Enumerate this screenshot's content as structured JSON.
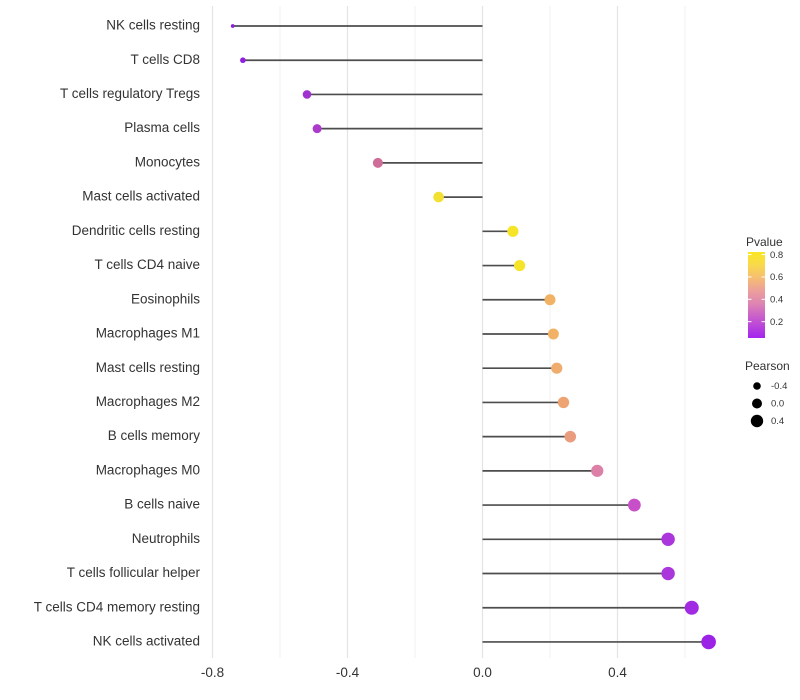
{
  "chart_data": {
    "type": "lollipop",
    "title": "",
    "xlabel": "",
    "ylabel": "",
    "x_axis": {
      "major_ticks": [
        -0.8,
        -0.4,
        0.0,
        0.4
      ],
      "major_tick_labels": [
        "-0.8",
        "-0.4",
        "0.0",
        "0.4"
      ],
      "minor_gridlines": [
        -0.6,
        -0.2,
        0.2,
        0.6
      ],
      "xlim": [
        -0.82,
        0.74
      ],
      "grid": "vertical-only"
    },
    "baseline_x": 0.0,
    "rows": [
      {
        "label": "NK cells resting",
        "pearson": -0.74,
        "dot_color": "#8A1EDC",
        "radius": 1.9
      },
      {
        "label": "T cells CD8",
        "pearson": -0.71,
        "dot_color": "#911FE0",
        "radius": 2.8
      },
      {
        "label": "T cells regulatory  Tregs",
        "pearson": -0.52,
        "dot_color": "#A231D2",
        "radius": 4.3
      },
      {
        "label": "Plasma cells",
        "pearson": -0.49,
        "dot_color": "#AC3BCC",
        "radius": 4.5
      },
      {
        "label": "Monocytes",
        "pearson": -0.31,
        "dot_color": "#CE6D97",
        "radius": 5.0
      },
      {
        "label": "Mast cells activated",
        "pearson": -0.13,
        "dot_color": "#F2E032",
        "radius": 5.3
      },
      {
        "label": "Dendritic cells resting",
        "pearson": 0.09,
        "dot_color": "#F6E428",
        "radius": 5.6
      },
      {
        "label": "T cells CD4 naive",
        "pearson": 0.11,
        "dot_color": "#F6E428",
        "radius": 5.6
      },
      {
        "label": "Eosinophils",
        "pearson": 0.2,
        "dot_color": "#F1B266",
        "radius": 5.5
      },
      {
        "label": "Macrophages M1",
        "pearson": 0.21,
        "dot_color": "#F1B266",
        "radius": 5.5
      },
      {
        "label": "Mast cells resting",
        "pearson": 0.22,
        "dot_color": "#F0AC6C",
        "radius": 5.6
      },
      {
        "label": "Macrophages M2",
        "pearson": 0.24,
        "dot_color": "#EEA472",
        "radius": 5.7
      },
      {
        "label": "B cells memory",
        "pearson": 0.26,
        "dot_color": "#E99C7E",
        "radius": 5.8
      },
      {
        "label": "Macrophages M0",
        "pearson": 0.34,
        "dot_color": "#DC80A8",
        "radius": 6.1
      },
      {
        "label": "B cells naive",
        "pearson": 0.45,
        "dot_color": "#C750C9",
        "radius": 6.4
      },
      {
        "label": "Neutrophils",
        "pearson": 0.55,
        "dot_color": "#AA36DC",
        "radius": 6.7
      },
      {
        "label": "T cells follicular helper",
        "pearson": 0.55,
        "dot_color": "#AA36DC",
        "radius": 6.7
      },
      {
        "label": "T cells CD4 memory resting",
        "pearson": 0.62,
        "dot_color": "#A02BE2",
        "radius": 7.0
      },
      {
        "label": "NK cells activated",
        "pearson": 0.67,
        "dot_color": "#9C22E6",
        "radius": 7.3
      }
    ],
    "legend_pvalue": {
      "title": "Pvalue",
      "ticks": [
        {
          "label": "0.8",
          "frac_from_top": 0.03
        },
        {
          "label": "0.6",
          "frac_from_top": 0.29
        },
        {
          "label": "0.4",
          "frac_from_top": 0.55
        },
        {
          "label": "0.2",
          "frac_from_top": 0.81
        }
      ],
      "gradient_bottom_to_top": [
        {
          "offset": 0.0,
          "color": "#A524EE"
        },
        {
          "offset": 0.2,
          "color": "#C253D2"
        },
        {
          "offset": 0.4,
          "color": "#DE85B2"
        },
        {
          "offset": 0.55,
          "color": "#EC9F9B"
        },
        {
          "offset": 0.7,
          "color": "#F6BD72"
        },
        {
          "offset": 0.85,
          "color": "#F9D94C"
        },
        {
          "offset": 1.0,
          "color": "#F9E721"
        }
      ]
    },
    "legend_pearson": {
      "title": "Pearson",
      "items": [
        {
          "label": "-0.4",
          "radius": 3.8
        },
        {
          "label": "0.0",
          "radius": 5.0
        },
        {
          "label": "0.4",
          "radius": 6.2
        }
      ],
      "dot_color": "#000000"
    },
    "colors": {
      "stem": "#4D4D4D",
      "grid_major": "#E4E4E4",
      "grid_minor": "#ECECEC",
      "axis_text": "#333333",
      "legend_text": "#333333",
      "background": "#FFFFFF"
    }
  }
}
